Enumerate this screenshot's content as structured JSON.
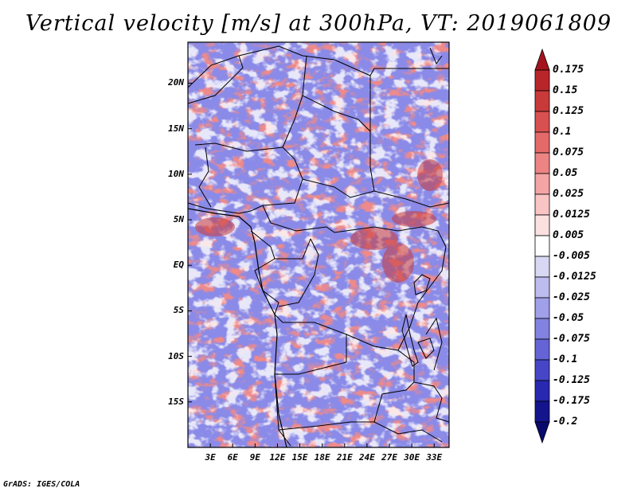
{
  "title": "Vertical velocity [m/s] at 300hPa, VT: 2019061809",
  "credit": "GrADS: IGES/COLA",
  "map": {
    "lat_labels": [
      "20N",
      "15N",
      "10N",
      "5N",
      "EQ",
      "5S",
      "10S",
      "15S"
    ],
    "lon_labels": [
      "3E",
      "6E",
      "9E",
      "12E",
      "15E",
      "18E",
      "21E",
      "24E",
      "27E",
      "30E",
      "33E"
    ],
    "lat_values": [
      20,
      15,
      10,
      5,
      0,
      -5,
      -10,
      -15
    ],
    "lon_values": [
      3,
      6,
      9,
      12,
      15,
      18,
      21,
      24,
      27,
      30,
      33
    ],
    "lon_range": [
      0,
      35
    ],
    "lat_range": [
      -20,
      24.5
    ]
  },
  "colorbar": {
    "labels": [
      "0.175",
      "0.15",
      "0.125",
      "0.1",
      "0.075",
      "0.05",
      "0.025",
      "0.0125",
      "0.005",
      "-0.005",
      "-0.0125",
      "-0.025",
      "-0.05",
      "-0.075",
      "-0.1",
      "-0.125",
      "-0.175",
      "-0.2"
    ],
    "colors": [
      "#a4141e",
      "#b8262a",
      "#c83a3a",
      "#d85050",
      "#e46a6a",
      "#ec8484",
      "#f4a4a4",
      "#f8c4c4",
      "#fbe0e0",
      "#ffffff",
      "#d8d8f4",
      "#bcbcee",
      "#a0a0e8",
      "#8282e0",
      "#6464d6",
      "#4646c6",
      "#2828b0",
      "#14148c",
      "#0a0a6e"
    ]
  },
  "field_colors": {
    "red": "#ee8a8a",
    "blue": "#8a8ae8",
    "white": "#ffffff",
    "border": "#000000"
  }
}
